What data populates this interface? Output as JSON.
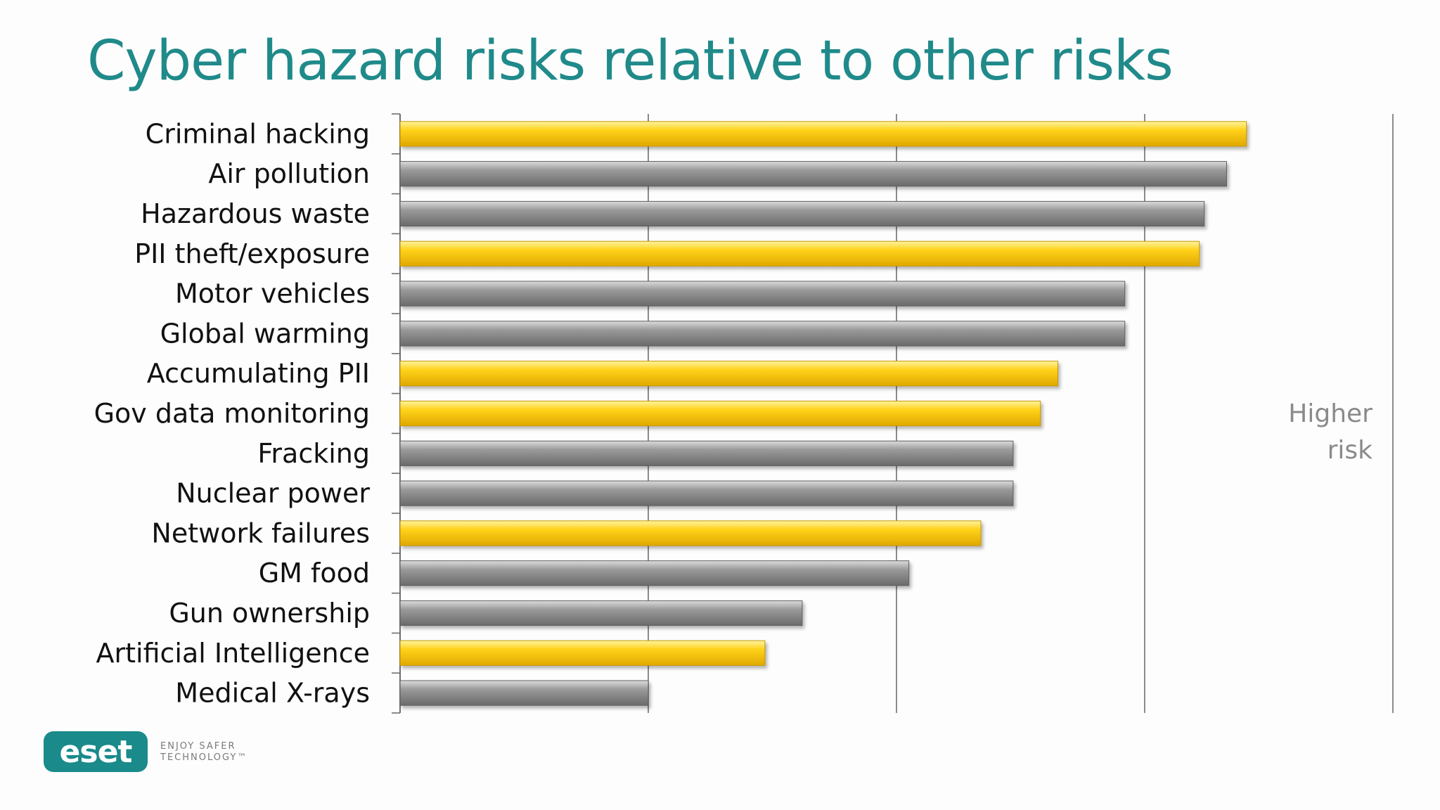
{
  "slide": {
    "title": "Cyber hazard risks relative to other risks",
    "side_note_line1": "Higher",
    "side_note_line2": "risk"
  },
  "footer": {
    "logo_text": "eset",
    "tagline_line1": "ENJOY SAFER",
    "tagline_line2": "TECHNOLOGY™"
  },
  "colors": {
    "title": "#208a8a",
    "cyber_bar": "#f5c400",
    "other_bar": "#8c8c8c",
    "gridline": "#6f6f6f",
    "brand": "#1a8a8a"
  },
  "chart_data": {
    "type": "bar",
    "orientation": "horizontal",
    "title": "Cyber hazard risks relative to other risks",
    "xlabel": "",
    "ylabel": "",
    "xlim": [
      0,
      4
    ],
    "grid": true,
    "categories": [
      "Criminal hacking",
      "Air pollution",
      "Hazardous waste",
      "PII theft/exposure",
      "Motor vehicles",
      "Global warming",
      "Accumulating PII",
      "Gov data monitoring",
      "Fracking",
      "Nuclear power",
      "Network failures",
      "GM food",
      "Gun ownership",
      "Artificial Intelligence",
      "Medical X-rays"
    ],
    "values": [
      3.41,
      3.33,
      3.24,
      3.22,
      2.92,
      2.92,
      2.65,
      2.58,
      2.47,
      2.47,
      2.34,
      2.05,
      1.62,
      1.47,
      1.0
    ],
    "is_cyber": [
      true,
      false,
      false,
      true,
      false,
      false,
      true,
      true,
      false,
      false,
      true,
      false,
      false,
      true,
      false
    ],
    "annotations": [
      "Higher risk"
    ]
  }
}
